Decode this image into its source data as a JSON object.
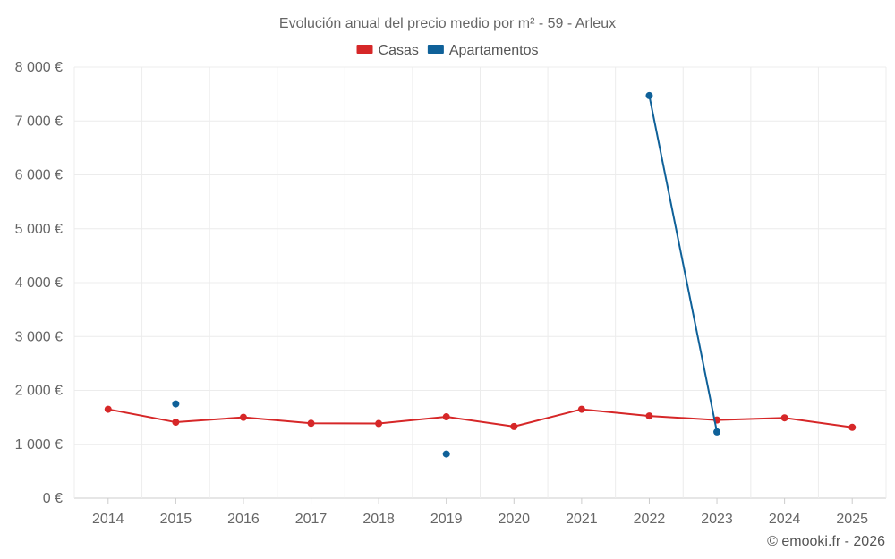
{
  "chart_data": {
    "type": "line",
    "title": "Evolución anual del precio medio por m² - 59 - Arleux",
    "xlabel": "",
    "ylabel": "",
    "categories": [
      "2014",
      "2015",
      "2016",
      "2017",
      "2018",
      "2019",
      "2020",
      "2021",
      "2022",
      "2023",
      "2024",
      "2025"
    ],
    "ylim": [
      0,
      8000
    ],
    "yticks": [
      0,
      1000,
      2000,
      3000,
      4000,
      5000,
      6000,
      7000,
      8000
    ],
    "ytick_labels": [
      "0 €",
      "1 000 €",
      "2 000 €",
      "3 000 €",
      "4 000 €",
      "5 000 €",
      "6 000 €",
      "7 000 €",
      "8 000 €"
    ],
    "grid": true,
    "legend_position": "top-center",
    "series": [
      {
        "name": "Casas",
        "color": "#d62728",
        "values": [
          1650,
          1410,
          1500,
          1390,
          1385,
          1510,
          1330,
          1650,
          1525,
          1450,
          1490,
          1315
        ]
      },
      {
        "name": "Apartamentos",
        "color": "#0f6199",
        "values": [
          null,
          1750,
          null,
          null,
          null,
          820,
          null,
          null,
          7470,
          1230,
          null,
          null
        ]
      }
    ],
    "credit": "© emooki.fr - 2026"
  }
}
